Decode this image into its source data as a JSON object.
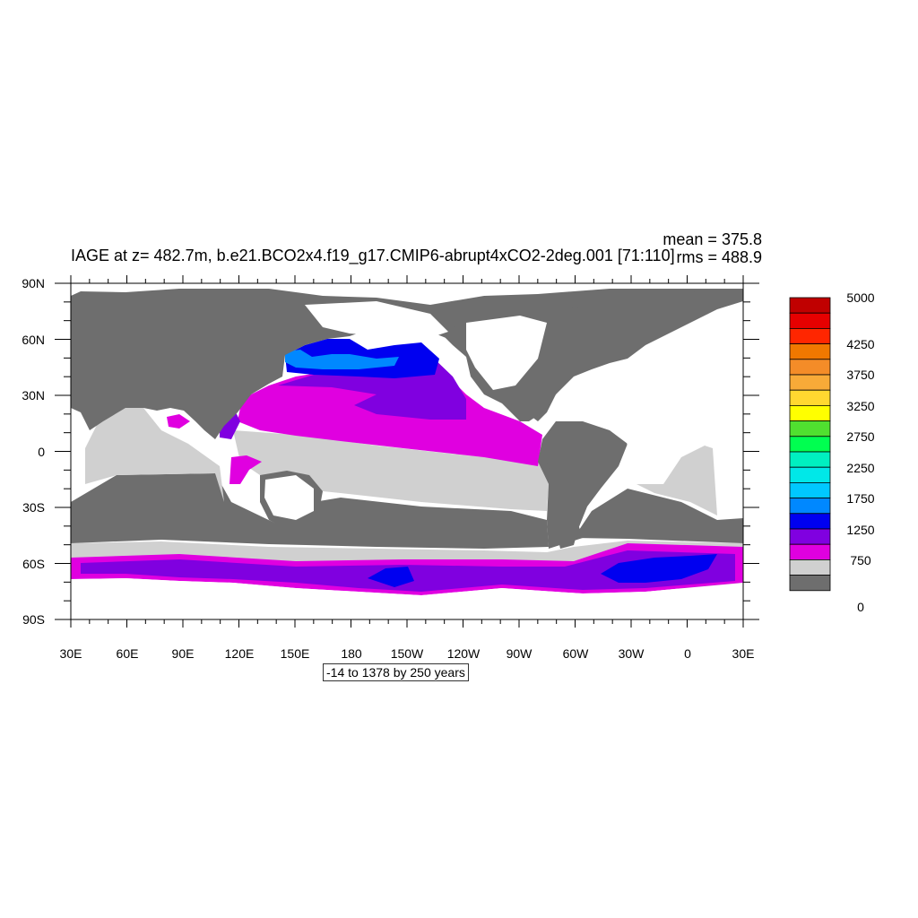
{
  "plot": {
    "title": "IAGE at z= 482.7m, b.e21.BCO2x4.f19_g17.CMIP6-abrupt4xCO2-2deg.001 [71:110]",
    "mean_label": "mean = 375.8",
    "rms_label": "rms = 488.9",
    "contour_info": "-14 to 1378 by 250 years"
  },
  "axes": {
    "lat_labels": [
      "90N",
      "60N",
      "30N",
      "0",
      "30S",
      "60S",
      "90S"
    ],
    "lon_labels": [
      "30E",
      "60E",
      "90E",
      "120E",
      "150E",
      "180",
      "150W",
      "120W",
      "90W",
      "60W",
      "30W",
      "0",
      "30E"
    ]
  },
  "legend": {
    "labels": [
      "5000",
      "4250",
      "3750",
      "3250",
      "2750",
      "2250",
      "1750",
      "1250",
      "750",
      "0"
    ],
    "colors": [
      "#c00000",
      "#e60000",
      "#ff2600",
      "#f07800",
      "#f48c28",
      "#f8aa38",
      "#ffd830",
      "#ffff00",
      "#50e030",
      "#00ff50",
      "#00f0c0",
      "#00e8e8",
      "#00c8ff",
      "#0088ff",
      "#0000f0",
      "#8000e0",
      "#e000e0",
      "#d0d0d0",
      "#6e6e6e"
    ]
  },
  "colors": {
    "land": "#6e6e6e",
    "ocean_missing": "#ffffff",
    "band_low": "#d0d0d0",
    "band_magenta": "#e000e0",
    "band_violet": "#8000e0",
    "band_blue": "#0000f0",
    "band_lightblue": "#0088ff"
  }
}
